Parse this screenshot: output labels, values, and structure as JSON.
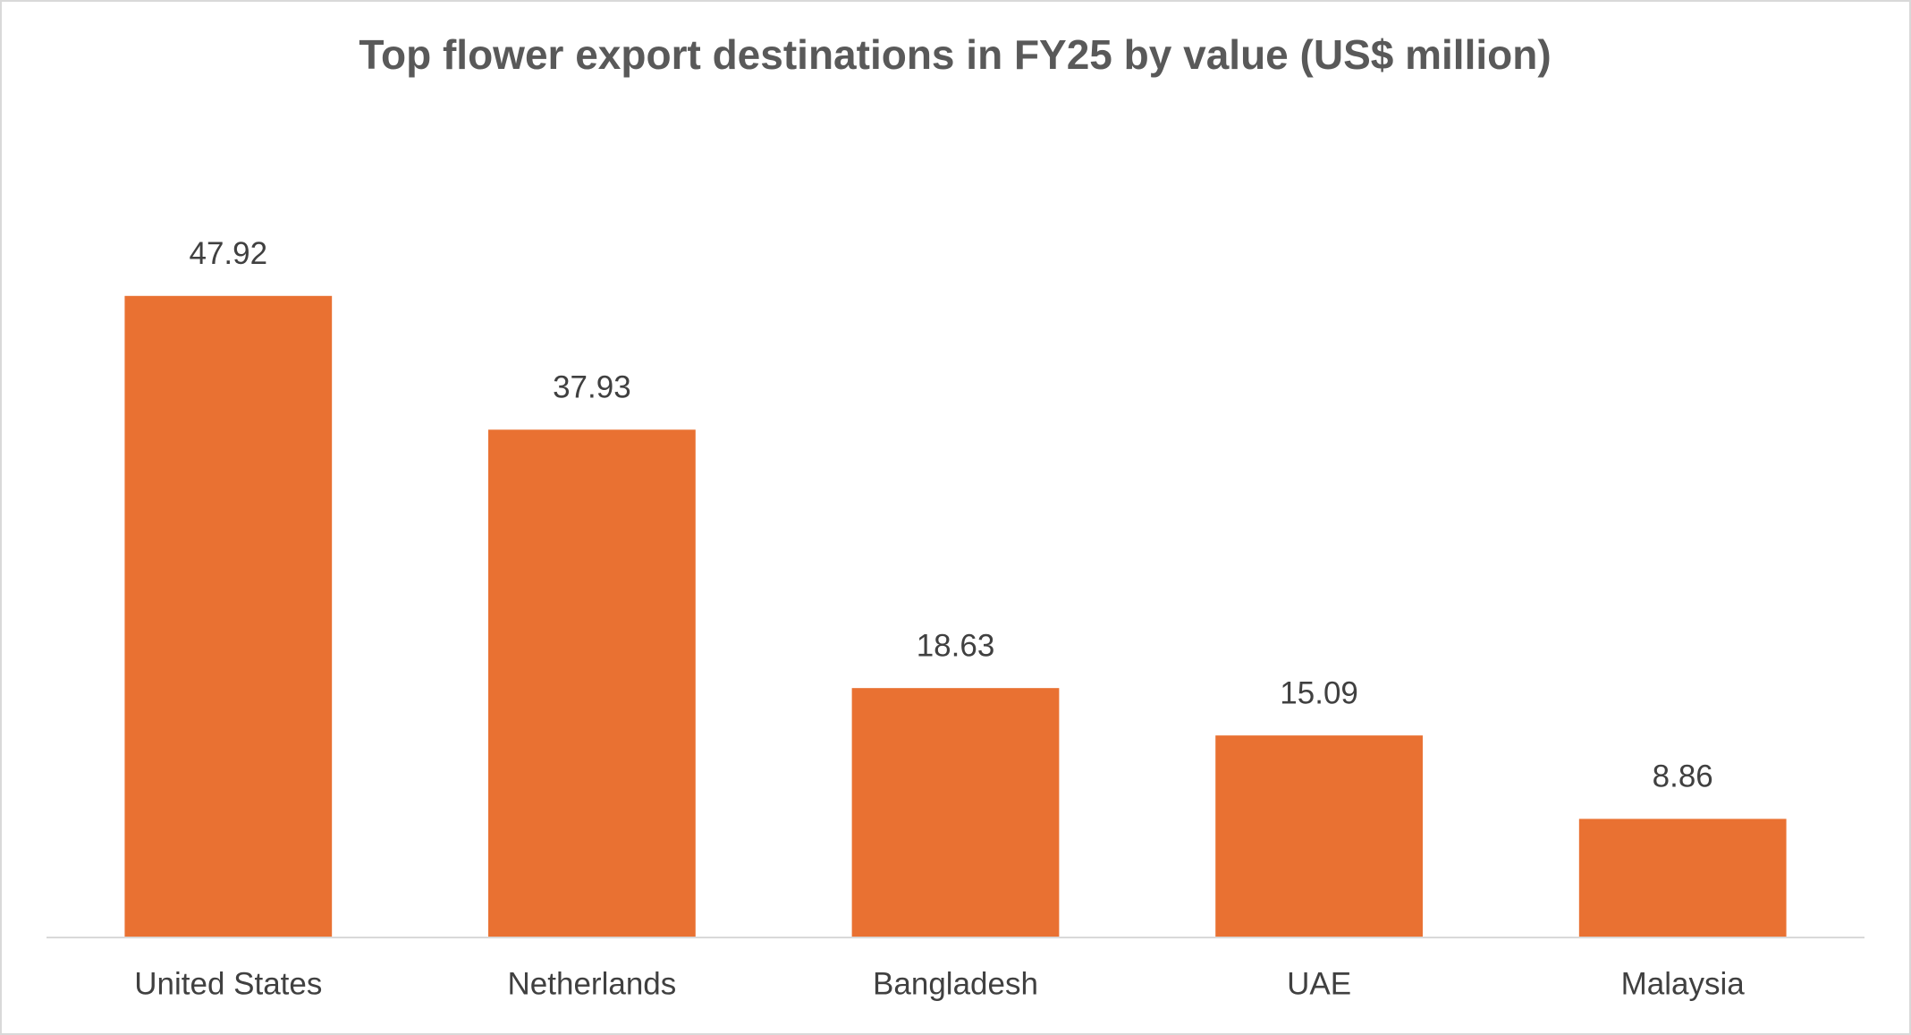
{
  "chart_data": {
    "type": "bar",
    "title": "Top flower export destinations in FY25 by value (US$ million)",
    "categories": [
      "United States",
      "Netherlands",
      "Bangladesh",
      "UAE",
      "Malaysia"
    ],
    "values": [
      47.92,
      37.93,
      18.63,
      15.09,
      8.86
    ],
    "color": "#E97132",
    "ylim": [
      0,
      60
    ]
  }
}
